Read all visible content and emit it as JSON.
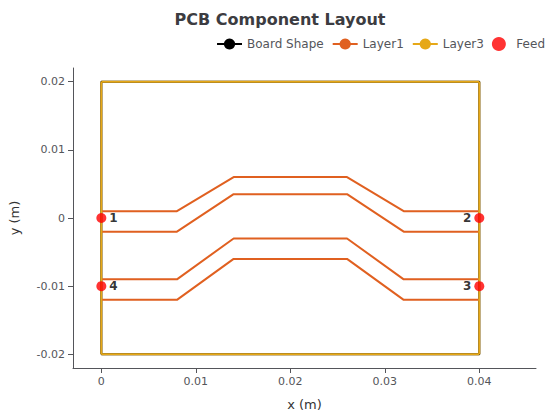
{
  "chart_data": {
    "type": "line",
    "title": "PCB Component Layout",
    "xlabel": "x (m)",
    "ylabel": "y (m)",
    "xlim": [
      -0.003,
      0.046
    ],
    "ylim": [
      -0.022,
      0.022
    ],
    "xticks": [
      0,
      0.01,
      0.02,
      0.03,
      0.04
    ],
    "yticks": [
      -0.02,
      -0.01,
      0,
      0.01,
      0.02
    ],
    "grid": false,
    "legend": "upper right",
    "series": [
      {
        "name": "Board Shape",
        "type": "line",
        "color": "#000000",
        "x": [
          0,
          0.04,
          0.04,
          0,
          0
        ],
        "values": [
          -0.02,
          -0.02,
          0.02,
          0.02,
          -0.02
        ]
      },
      {
        "name": "Layer1",
        "type": "line",
        "color": "#E06020",
        "x": [
          0,
          0.008,
          0.014,
          0.026,
          0.032,
          0.04
        ],
        "values": [
          0.001,
          0.001,
          0.006,
          0.006,
          0.001,
          0.001
        ]
      },
      {
        "name": "Layer1",
        "type": "line",
        "color": "#E06020",
        "x": [
          0,
          0.008,
          0.014,
          0.026,
          0.032,
          0.04
        ],
        "values": [
          -0.002,
          -0.002,
          0.0035,
          0.0035,
          -0.002,
          -0.002
        ]
      },
      {
        "name": "Layer1",
        "type": "line",
        "color": "#E06020",
        "x": [
          0,
          0.008,
          0.014,
          0.026,
          0.032,
          0.04
        ],
        "values": [
          -0.009,
          -0.009,
          -0.003,
          -0.003,
          -0.009,
          -0.009
        ]
      },
      {
        "name": "Layer1",
        "type": "line",
        "color": "#E06020",
        "x": [
          0,
          0.008,
          0.014,
          0.026,
          0.032,
          0.04
        ],
        "values": [
          -0.012,
          -0.012,
          -0.006,
          -0.006,
          -0.012,
          -0.012
        ]
      },
      {
        "name": "Layer3",
        "type": "line",
        "color": "#E6A817",
        "x": [
          0,
          0
        ],
        "values": [
          -0.02,
          0.02
        ]
      },
      {
        "name": "Layer3",
        "type": "line",
        "color": "#E6A817",
        "x": [
          0.04,
          0.04
        ],
        "values": [
          -0.02,
          0.02
        ]
      },
      {
        "name": "Layer3",
        "type": "line",
        "color": "#E6A817",
        "x": [
          0,
          0.04
        ],
        "values": [
          0.02,
          0.02
        ]
      },
      {
        "name": "Layer3",
        "type": "line",
        "color": "#E6A817",
        "x": [
          0,
          0.04
        ],
        "values": [
          -0.02,
          -0.02
        ]
      },
      {
        "name": "Feed",
        "type": "scatter",
        "color": "#FF0000",
        "marker": "circle",
        "x": [
          0,
          0.04,
          0.04,
          0
        ],
        "values": [
          0,
          0,
          -0.01,
          -0.01
        ]
      }
    ],
    "annotations": [
      {
        "x": 0,
        "y": 0,
        "text": "1"
      },
      {
        "x": 0.04,
        "y": 0,
        "text": "2"
      },
      {
        "x": 0.04,
        "y": -0.01,
        "text": "3"
      },
      {
        "x": 0,
        "y": -0.01,
        "text": "4"
      }
    ]
  }
}
